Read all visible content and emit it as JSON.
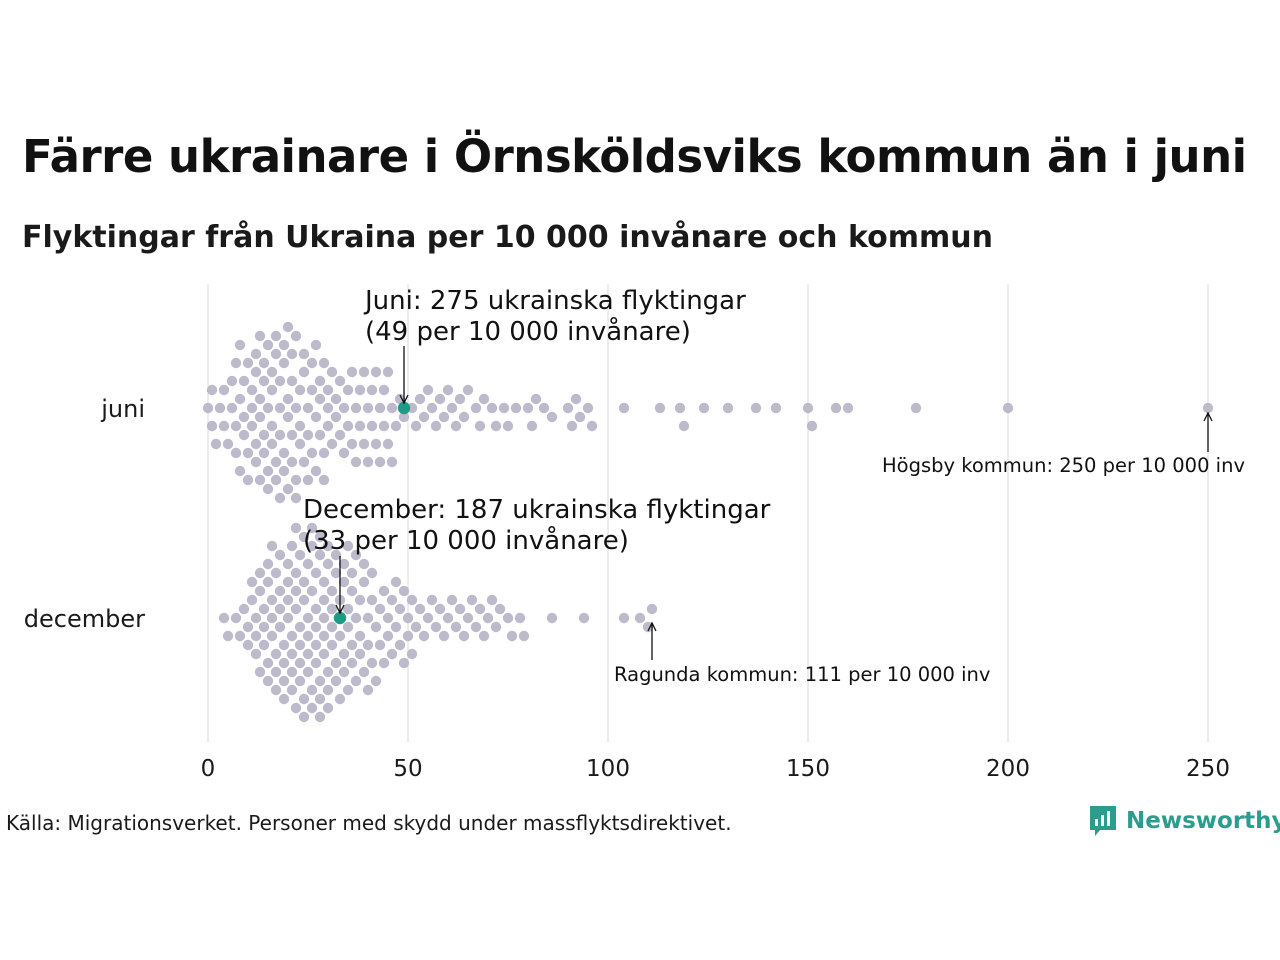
{
  "title": "Färre ukrainare i Örnsköldsviks kommun än i juni",
  "subtitle": "Flyktingar från Ukraina per 10 000 invånare och kommun",
  "source": "Källa: Migrationsverket. Personer med skydd under massflyktsdirektivet.",
  "brand": {
    "name": "Newsworthy",
    "color": "#2a9d8f"
  },
  "colors": {
    "dot": "#bdbbcb",
    "highlight": "#1f9a85",
    "grid": "#d9d9d9",
    "text": "#1a1a1a"
  },
  "chart_data": {
    "type": "scatter",
    "subtype": "beeswarm",
    "xlim": [
      0,
      250
    ],
    "xticks": [
      "0",
      "50",
      "100",
      "150",
      "200",
      "250"
    ],
    "xtick_values": [
      0,
      50,
      100,
      150,
      200,
      250
    ],
    "grid": true,
    "categories": [
      "juni",
      "december"
    ],
    "series": [
      {
        "name": "juni",
        "values": [
          0,
          1,
          1,
          2,
          3,
          4,
          4,
          5,
          6,
          6,
          7,
          7,
          7,
          8,
          8,
          8,
          9,
          9,
          9,
          10,
          10,
          10,
          11,
          11,
          11,
          12,
          12,
          12,
          12,
          13,
          13,
          13,
          13,
          14,
          14,
          14,
          14,
          15,
          15,
          15,
          15,
          16,
          16,
          16,
          16,
          17,
          17,
          17,
          17,
          18,
          18,
          18,
          18,
          19,
          19,
          19,
          19,
          20,
          20,
          20,
          20,
          21,
          21,
          21,
          21,
          22,
          22,
          22,
          22,
          23,
          23,
          23,
          24,
          24,
          24,
          25,
          25,
          25,
          26,
          26,
          26,
          27,
          27,
          27,
          28,
          28,
          28,
          29,
          29,
          29,
          30,
          30,
          30,
          31,
          31,
          32,
          32,
          33,
          33,
          34,
          34,
          35,
          35,
          36,
          36,
          37,
          37,
          38,
          38,
          39,
          39,
          40,
          40,
          41,
          41,
          42,
          42,
          43,
          43,
          44,
          44,
          45,
          45,
          46,
          46,
          47,
          48,
          49,
          51,
          52,
          53,
          54,
          55,
          56,
          57,
          58,
          59,
          60,
          61,
          62,
          63,
          64,
          65,
          67,
          68,
          69,
          71,
          72,
          74,
          75,
          77,
          80,
          81,
          82,
          84,
          86,
          90,
          91,
          92,
          93,
          95,
          96,
          104,
          113,
          118,
          119,
          124,
          130,
          137,
          142,
          150,
          151,
          157,
          160,
          177,
          200
        ],
        "highlight": {
          "label": "Örnsköldsviks kommun",
          "value": 49
        },
        "max": {
          "label": "Högsby kommun",
          "value": 250
        }
      },
      {
        "name": "december",
        "values": [
          4,
          5,
          7,
          8,
          9,
          10,
          10,
          11,
          11,
          12,
          12,
          12,
          13,
          13,
          13,
          14,
          14,
          14,
          15,
          15,
          15,
          15,
          16,
          16,
          16,
          16,
          17,
          17,
          17,
          17,
          18,
          18,
          18,
          18,
          19,
          19,
          19,
          19,
          20,
          20,
          20,
          20,
          21,
          21,
          21,
          21,
          21,
          22,
          22,
          22,
          22,
          22,
          23,
          23,
          23,
          23,
          23,
          24,
          24,
          24,
          24,
          24,
          25,
          25,
          25,
          25,
          25,
          26,
          26,
          26,
          26,
          26,
          27,
          27,
          27,
          27,
          27,
          28,
          28,
          28,
          28,
          28,
          29,
          29,
          29,
          29,
          29,
          30,
          30,
          30,
          30,
          30,
          31,
          31,
          31,
          31,
          32,
          32,
          32,
          32,
          33,
          33,
          33,
          33,
          34,
          34,
          34,
          34,
          35,
          35,
          35,
          35,
          36,
          36,
          36,
          36,
          37,
          37,
          37,
          38,
          38,
          38,
          39,
          39,
          39,
          40,
          40,
          40,
          41,
          41,
          41,
          42,
          42,
          43,
          43,
          44,
          44,
          45,
          45,
          46,
          46,
          47,
          47,
          48,
          48,
          49,
          49,
          50,
          50,
          51,
          51,
          52,
          53,
          54,
          55,
          56,
          57,
          58,
          59,
          60,
          61,
          62,
          63,
          64,
          65,
          66,
          67,
          68,
          69,
          70,
          71,
          72,
          73,
          75,
          76,
          78,
          79,
          86,
          94,
          104,
          108,
          110
        ],
        "highlight": {
          "label": "Örnsköldsviks kommun",
          "value": 33
        },
        "max": {
          "label": "Ragunda kommun",
          "value": 111
        }
      }
    ],
    "annotations": [
      {
        "category": "juni",
        "lines": [
          "Juni: 275 ukrainska flyktingar",
          "(49 per 10 000 invånare)"
        ],
        "value": 49
      },
      {
        "category": "december",
        "lines": [
          "December: 187 ukrainska flyktingar",
          "(33 per 10 000 invånare)"
        ],
        "value": 33
      },
      {
        "category": "juni",
        "text": "Högsby kommun: 250 per 10 000 inv",
        "value": 250
      },
      {
        "category": "december",
        "text": "Ragunda kommun: 111 per 10 000 inv",
        "value": 111
      }
    ]
  }
}
